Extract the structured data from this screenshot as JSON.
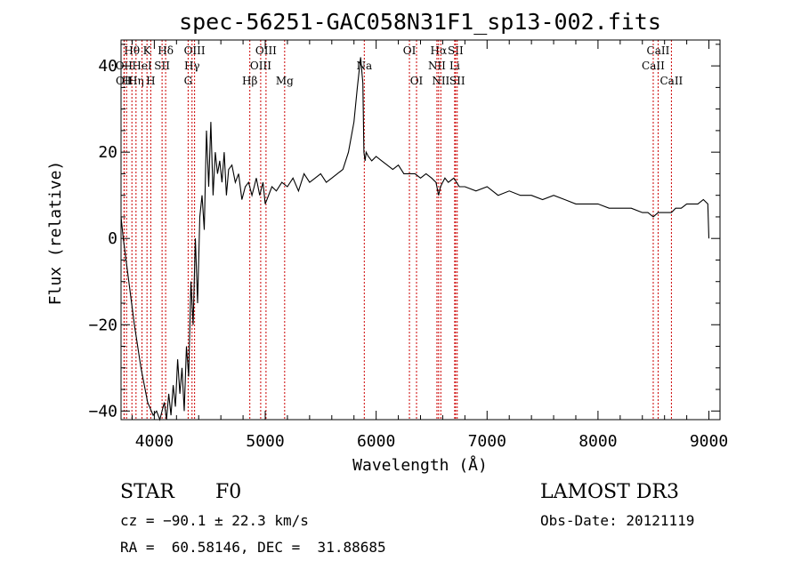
{
  "chart_data": {
    "type": "line",
    "title": "spec-56251-GAC058N31F1_sp13-002.fits",
    "xlabel": "Wavelength (Å)",
    "ylabel": "Flux (relative)",
    "xlim": [
      3700,
      9100
    ],
    "ylim": [
      -42,
      46
    ],
    "xticks": [
      4000,
      5000,
      6000,
      7000,
      8000,
      9000
    ],
    "yticks": [
      -40,
      -20,
      0,
      20,
      40
    ],
    "ytick_labels": [
      "−40",
      "−20",
      "0",
      "20",
      "40"
    ],
    "series": [
      {
        "name": "flux",
        "x": [
          3700,
          3720,
          3760,
          3820,
          3880,
          3940,
          3990,
          4020,
          4050,
          4070,
          4090,
          4110,
          4130,
          4150,
          4170,
          4190,
          4210,
          4230,
          4250,
          4270,
          4290,
          4310,
          4330,
          4350,
          4370,
          4390,
          4410,
          4430,
          4450,
          4470,
          4490,
          4510,
          4530,
          4550,
          4570,
          4590,
          4610,
          4630,
          4650,
          4670,
          4700,
          4730,
          4760,
          4790,
          4820,
          4850,
          4880,
          4900,
          4920,
          4950,
          4980,
          5000,
          5030,
          5060,
          5100,
          5150,
          5200,
          5250,
          5300,
          5350,
          5400,
          5450,
          5500,
          5550,
          5600,
          5650,
          5700,
          5750,
          5800,
          5830,
          5860,
          5880,
          5890,
          5900,
          5910,
          5930,
          5960,
          6000,
          6050,
          6100,
          6150,
          6200,
          6250,
          6300,
          6350,
          6400,
          6450,
          6500,
          6540,
          6563,
          6580,
          6620,
          6650,
          6700,
          6750,
          6800,
          6900,
          7000,
          7100,
          7200,
          7300,
          7400,
          7500,
          7600,
          7700,
          7800,
          7900,
          8000,
          8100,
          8200,
          8300,
          8400,
          8450,
          8498,
          8542,
          8600,
          8662,
          8700,
          8750,
          8800,
          8850,
          8900,
          8950,
          8990,
          9000
        ],
        "y": [
          5,
          0,
          -8,
          -20,
          -30,
          -38,
          -41,
          -40,
          -42,
          -40,
          -38,
          -42,
          -36,
          -41,
          -34,
          -39,
          -28,
          -36,
          -30,
          -40,
          -25,
          -32,
          -10,
          -20,
          0,
          -15,
          5,
          10,
          2,
          25,
          12,
          27,
          10,
          20,
          15,
          18,
          13,
          20,
          10,
          16,
          17,
          13,
          15,
          9,
          12,
          13,
          10,
          12,
          14,
          10,
          13,
          8,
          10,
          12,
          11,
          13,
          12,
          14,
          11,
          15,
          13,
          14,
          15,
          13,
          14,
          15,
          16,
          20,
          27,
          35,
          42,
          36,
          20,
          18,
          20,
          19,
          18,
          19,
          18,
          17,
          16,
          17,
          15,
          15,
          15,
          14,
          15,
          14,
          13,
          10,
          12,
          14,
          13,
          14,
          12,
          12,
          11,
          12,
          10,
          11,
          10,
          10,
          9,
          10,
          9,
          8,
          8,
          8,
          7,
          7,
          7,
          6,
          6,
          5,
          6,
          6,
          6,
          7,
          7,
          8,
          8,
          8,
          9,
          8,
          0
        ]
      }
    ],
    "spectral_lines": [
      {
        "label": "Hθ",
        "wavelength": 3798,
        "row": 1
      },
      {
        "label": "OII",
        "wavelength": 3727,
        "row": 2
      },
      {
        "label": "H",
        "wavelength": 3750,
        "row": 3
      },
      {
        "label": "OII",
        "wavelength": 3729,
        "row": 3
      },
      {
        "label": "Hη",
        "wavelength": 3835,
        "row": 3
      },
      {
        "label": "K",
        "wavelength": 3934,
        "row": 1
      },
      {
        "label": "HeI",
        "wavelength": 3889,
        "row": 2
      },
      {
        "label": "H",
        "wavelength": 3968,
        "row": 3
      },
      {
        "label": "SII",
        "wavelength": 4070,
        "row": 2
      },
      {
        "label": "Hδ",
        "wavelength": 4102,
        "row": 1
      },
      {
        "label": "OIII",
        "wavelength": 4363,
        "row": 1
      },
      {
        "label": "Hγ",
        "wavelength": 4340,
        "row": 2
      },
      {
        "label": "G",
        "wavelength": 4305,
        "row": 3
      },
      {
        "label": "Hβ",
        "wavelength": 4861,
        "row": 3
      },
      {
        "label": "OIII",
        "wavelength": 5007,
        "row": 1
      },
      {
        "label": "OIII",
        "wavelength": 4959,
        "row": 2
      },
      {
        "label": "Mg",
        "wavelength": 5175,
        "row": 3
      },
      {
        "label": "Na",
        "wavelength": 5893,
        "row": 2
      },
      {
        "label": "OI",
        "wavelength": 6300,
        "row": 1
      },
      {
        "label": "OI",
        "wavelength": 6364,
        "row": 3
      },
      {
        "label": "Hα",
        "wavelength": 6563,
        "row": 1
      },
      {
        "label": "NII",
        "wavelength": 6548,
        "row": 2
      },
      {
        "label": "NII",
        "wavelength": 6583,
        "row": 3
      },
      {
        "label": "SII",
        "wavelength": 6716,
        "row": 1
      },
      {
        "label": "Li",
        "wavelength": 6708,
        "row": 2
      },
      {
        "label": "SII",
        "wavelength": 6731,
        "row": 3
      },
      {
        "label": "CaII",
        "wavelength": 8542,
        "row": 1
      },
      {
        "label": "CaII",
        "wavelength": 8498,
        "row": 2
      },
      {
        "label": "CaII",
        "wavelength": 8662,
        "row": 3
      }
    ]
  },
  "info": {
    "object_class": "STAR",
    "subclass": "F0",
    "survey": "LAMOST DR3",
    "redshift": "cz = −90.1 ± 22.3 km/s",
    "obs_date": "Obs-Date: 20121119",
    "coordinates": "RA =  60.58146, DEC =  31.88685"
  },
  "colors": {
    "spectrum": "#000000",
    "line_marker": "#cc0000",
    "axes": "#000000"
  }
}
